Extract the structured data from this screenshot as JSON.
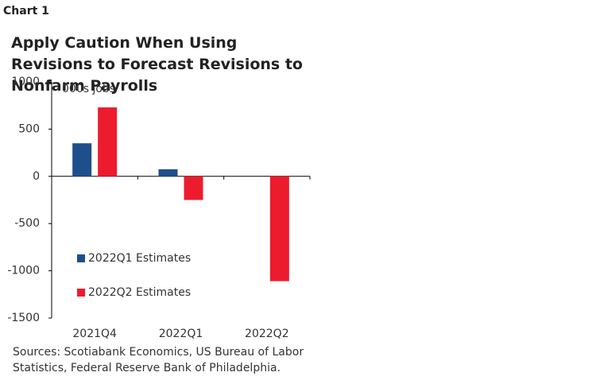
{
  "header": "Chart 1",
  "chart_data": {
    "type": "bar",
    "title": "Apply Caution When Using Revisions to Forecast Revisions to Nonfarm Payrolls",
    "annotation": "000s jobs",
    "categories": [
      "2021Q4",
      "2022Q1",
      "2022Q2"
    ],
    "series": [
      {
        "name": "2022Q1 Estimates",
        "color": "#1f4e8c",
        "values": [
          350,
          75,
          null
        ]
      },
      {
        "name": "2022Q2 Estimates",
        "color": "#ec1c2e",
        "values": [
          730,
          -250,
          -1110
        ]
      }
    ],
    "ylim": [
      -1500,
      1000
    ],
    "yticks": [
      -1500,
      -1000,
      -500,
      0,
      500,
      1000
    ],
    "source": "Sources: Scotiabank Economics, US Bureau of Labor Statistics, Federal Reserve Bank of Philadelphia."
  }
}
